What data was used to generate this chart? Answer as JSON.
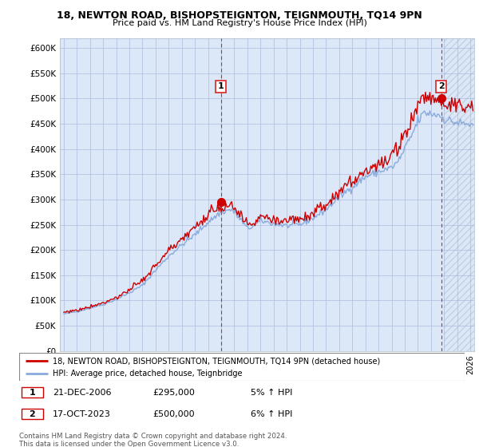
{
  "title": "18, NEWTON ROAD, BISHOPSTEIGNTON, TEIGNMOUTH, TQ14 9PN",
  "subtitle": "Price paid vs. HM Land Registry's House Price Index (HPI)",
  "ylim": [
    0,
    620000
  ],
  "yticks": [
    0,
    50000,
    100000,
    150000,
    200000,
    250000,
    300000,
    350000,
    400000,
    450000,
    500000,
    550000,
    600000
  ],
  "ytick_labels": [
    "£0",
    "£50K",
    "£100K",
    "£150K",
    "£200K",
    "£250K",
    "£300K",
    "£350K",
    "£400K",
    "£450K",
    "£500K",
    "£550K",
    "£600K"
  ],
  "xlim_start": 1994.7,
  "xlim_end": 2026.3,
  "line_color_property": "#cc0000",
  "line_color_hpi": "#88aadd",
  "sale1_x": 2006.97,
  "sale1_y": 295000,
  "sale1_label": "1",
  "sale2_x": 2023.79,
  "sale2_y": 500000,
  "sale2_label": "2",
  "legend_line1": "18, NEWTON ROAD, BISHOPSTEIGNTON, TEIGNMOUTH, TQ14 9PN (detached house)",
  "legend_line2": "HPI: Average price, detached house, Teignbridge",
  "annotation1_num": "1",
  "annotation1_date": "21-DEC-2006",
  "annotation1_price": "£295,000",
  "annotation1_hpi": "5% ↑ HPI",
  "annotation2_num": "2",
  "annotation2_date": "17-OCT-2023",
  "annotation2_price": "£500,000",
  "annotation2_hpi": "6% ↑ HPI",
  "footer": "Contains HM Land Registry data © Crown copyright and database right 2024.\nThis data is licensed under the Open Government Licence v3.0.",
  "background_color": "#dce8f8",
  "hatch_color": "#c8d8f0",
  "grid_color": "#aabbdd",
  "dashed_line_color": "#dd2222",
  "hatch_start": 2024.0
}
